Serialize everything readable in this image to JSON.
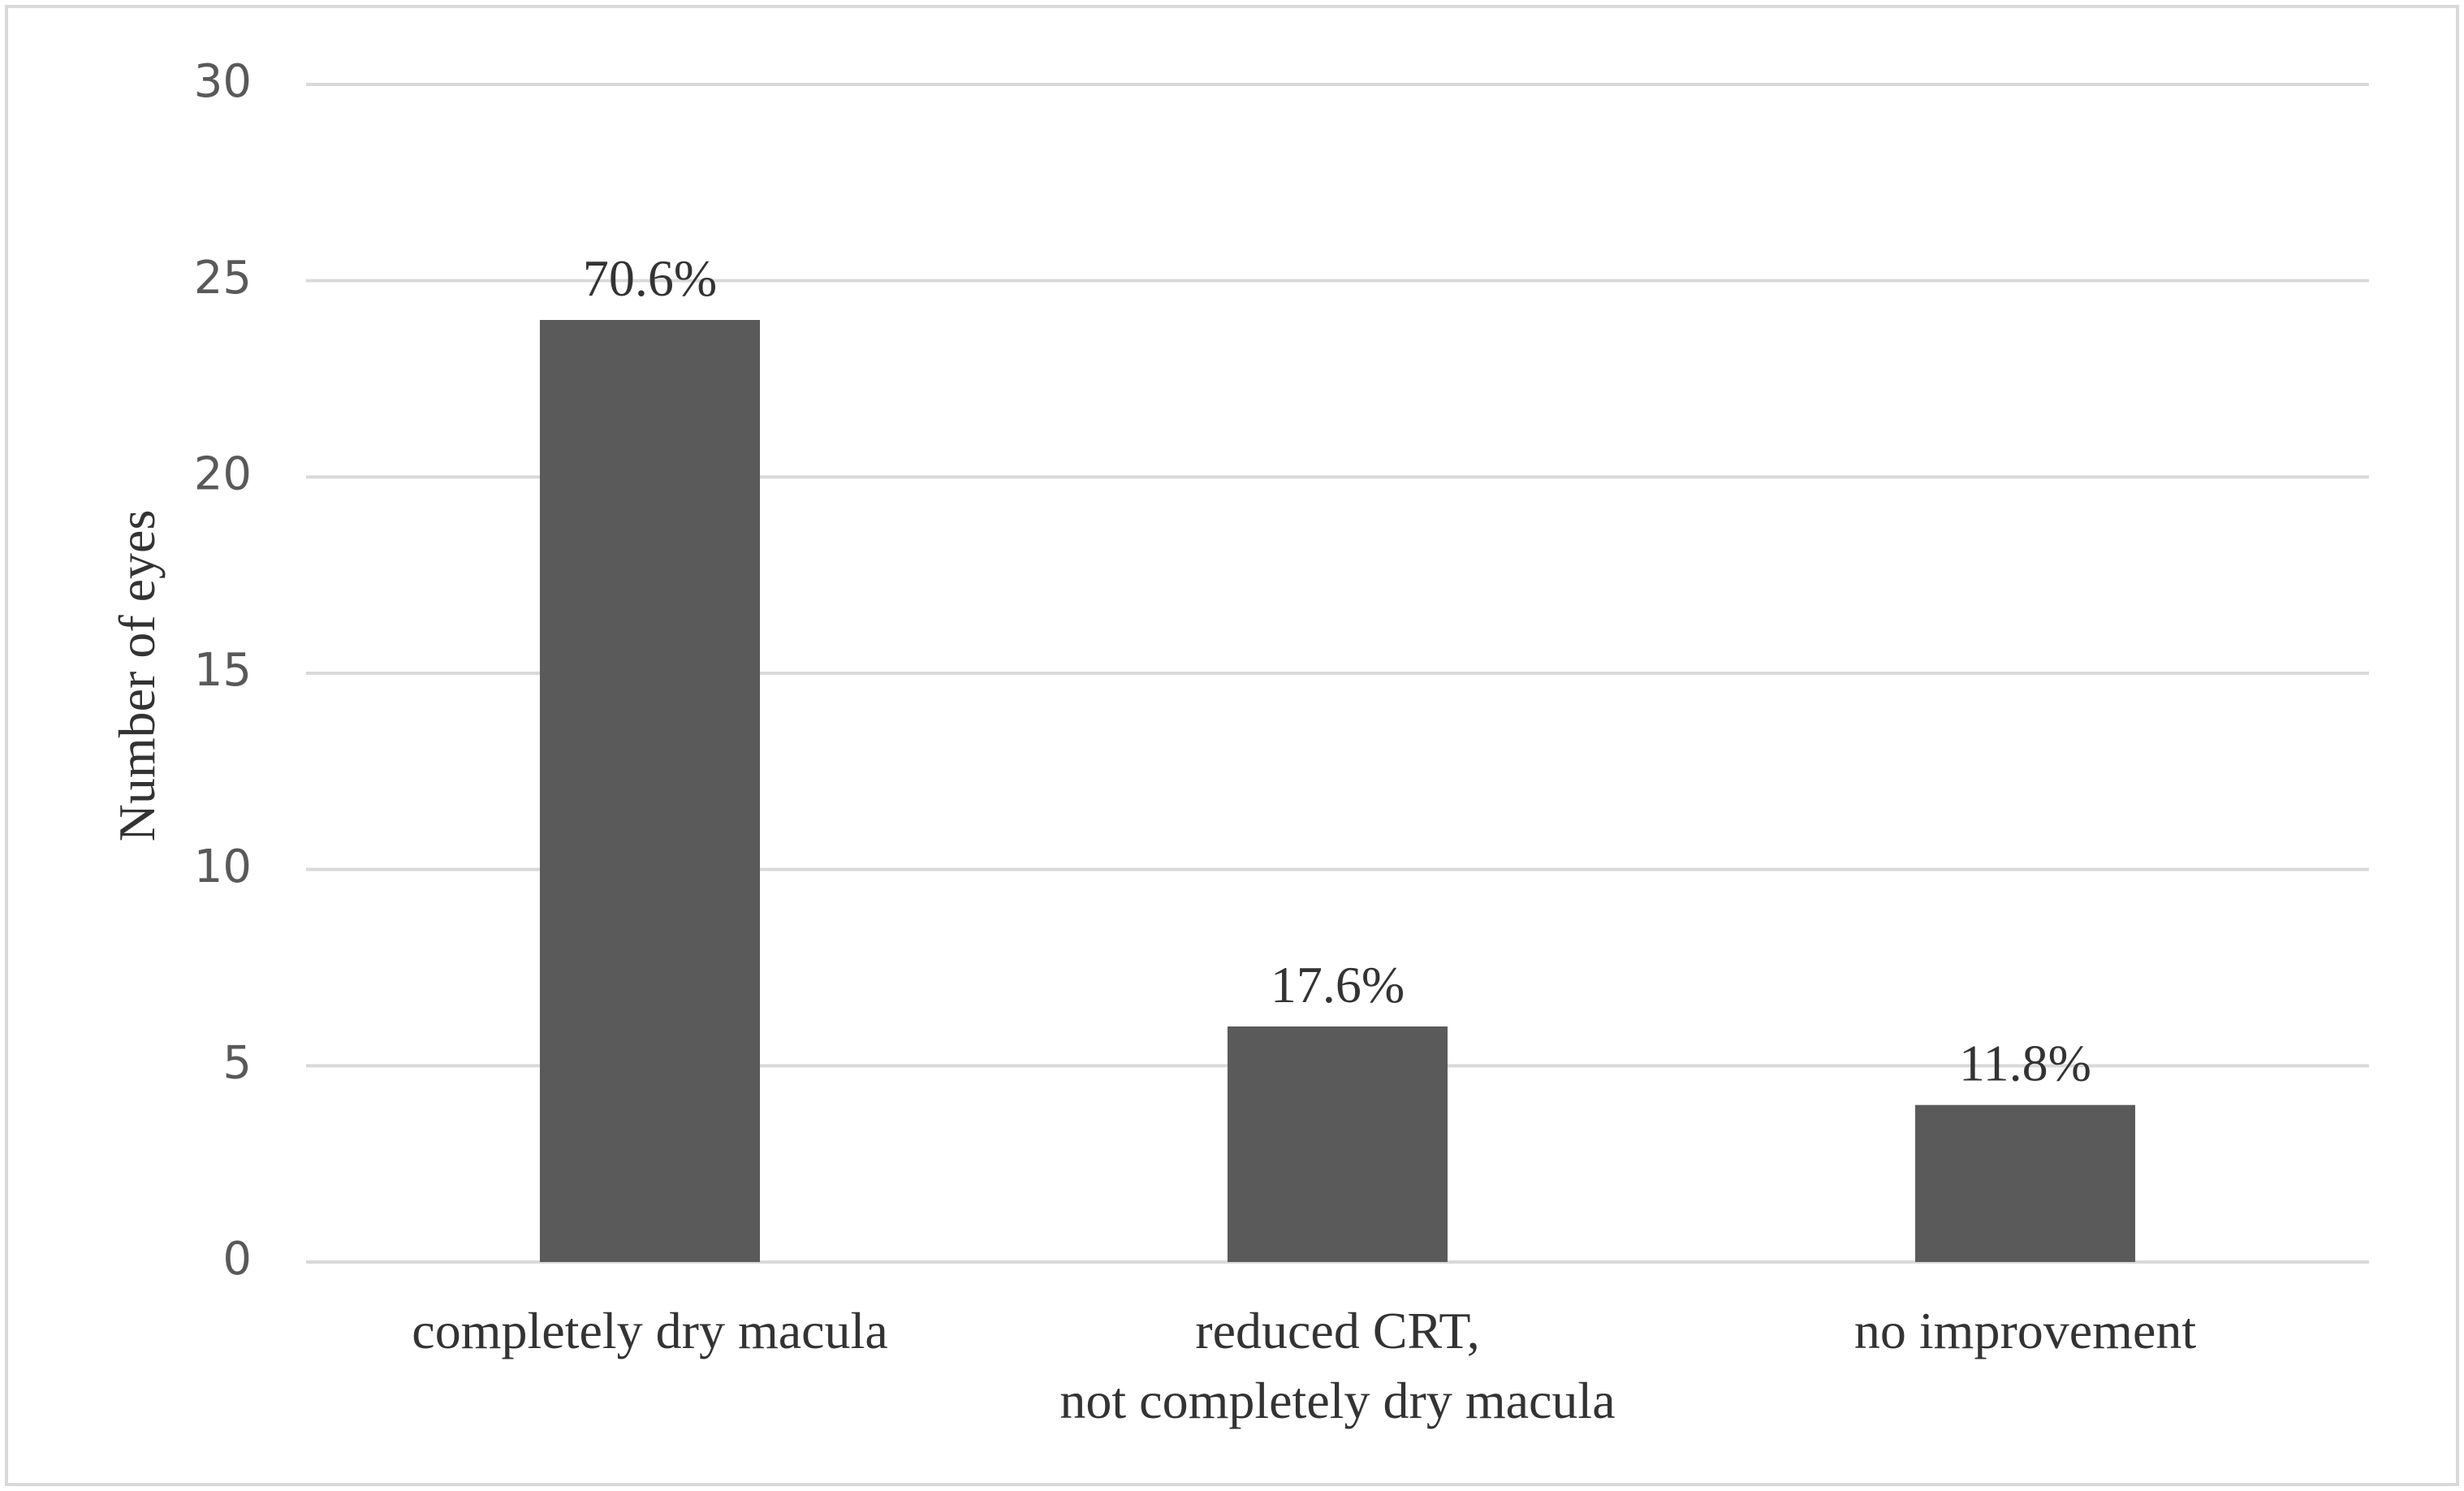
{
  "chart_data": {
    "type": "bar",
    "y_label": "Number of eyes",
    "categories": [
      "completely dry macula",
      "reduced CRT,\nnot completely dry macula",
      "no improvement"
    ],
    "values": [
      24,
      6,
      4
    ],
    "bar_labels": [
      "70.6%",
      "17.6%",
      "11.8%"
    ],
    "color": "#5a5a5a",
    "ylim": [
      0,
      30
    ],
    "yticks": [
      0,
      5,
      10,
      15,
      20,
      25,
      30
    ],
    "grid": true
  }
}
